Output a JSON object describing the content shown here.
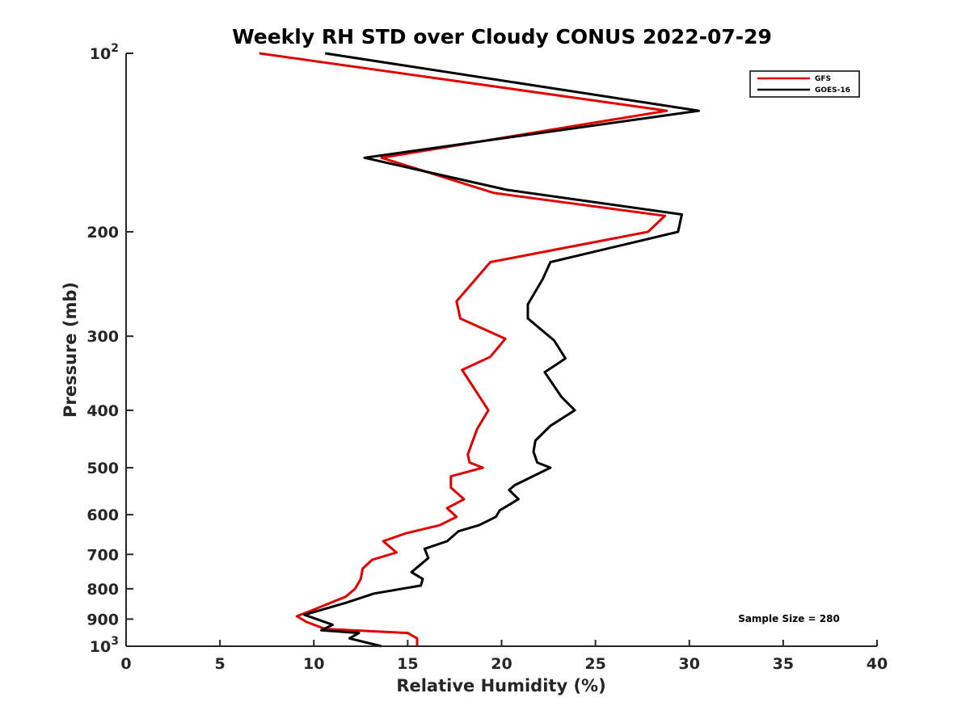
{
  "chart_data": {
    "type": "line",
    "title": "Weekly RH STD over Cloudy CONUS 2022-07-29",
    "xlabel": "Relative Humidity (%)",
    "ylabel": "Pressure (mb)",
    "xlim": [
      0,
      40
    ],
    "ylim": [
      100,
      1000
    ],
    "y_scale": "log",
    "y_reversed": true,
    "xticks": [
      0,
      5,
      10,
      15,
      20,
      25,
      30,
      35,
      40
    ],
    "xtick_labels": [
      "0",
      "5",
      "10",
      "15",
      "20",
      "25",
      "30",
      "35",
      "40"
    ],
    "yticks": [
      {
        "value": 100,
        "base": "10",
        "exp": "2"
      },
      {
        "value": 200,
        "base": "200",
        "exp": ""
      },
      {
        "value": 300,
        "base": "300",
        "exp": ""
      },
      {
        "value": 400,
        "base": "400",
        "exp": ""
      },
      {
        "value": 500,
        "base": "500",
        "exp": ""
      },
      {
        "value": 600,
        "base": "600",
        "exp": ""
      },
      {
        "value": 700,
        "base": "700",
        "exp": ""
      },
      {
        "value": 800,
        "base": "800",
        "exp": ""
      },
      {
        "value": 900,
        "base": "900",
        "exp": ""
      },
      {
        "value": 1000,
        "base": "10",
        "exp": "3"
      }
    ],
    "grid": false,
    "legend_position": "top-right",
    "annotation": "Sample Size = 280",
    "series": [
      {
        "name": "GFS",
        "color": "#e00000",
        "points": [
          [
            7.1,
            100
          ],
          [
            28.8,
            125
          ],
          [
            13.6,
            150
          ],
          [
            19.6,
            172
          ],
          [
            28.7,
            188
          ],
          [
            27.8,
            200
          ],
          [
            19.4,
            225
          ],
          [
            17.6,
            262
          ],
          [
            17.8,
            280
          ],
          [
            20.2,
            303
          ],
          [
            19.4,
            325
          ],
          [
            17.9,
            342
          ],
          [
            19.3,
            400
          ],
          [
            18.7,
            430
          ],
          [
            18.2,
            475
          ],
          [
            18.3,
            490
          ],
          [
            19.0,
            500
          ],
          [
            17.3,
            517
          ],
          [
            17.3,
            540
          ],
          [
            18.0,
            565
          ],
          [
            17.1,
            585
          ],
          [
            17.6,
            605
          ],
          [
            16.7,
            625
          ],
          [
            14.9,
            645
          ],
          [
            13.7,
            665
          ],
          [
            14.4,
            695
          ],
          [
            13.1,
            715
          ],
          [
            12.6,
            740
          ],
          [
            12.5,
            770
          ],
          [
            12.2,
            800
          ],
          [
            11.7,
            825
          ],
          [
            9.9,
            870
          ],
          [
            9.1,
            890
          ],
          [
            9.6,
            910
          ],
          [
            10.6,
            935
          ],
          [
            15.0,
            950
          ],
          [
            15.5,
            970
          ],
          [
            15.5,
            1000
          ]
        ]
      },
      {
        "name": "GOES-16",
        "color": "#000000",
        "points": [
          [
            10.6,
            100
          ],
          [
            30.5,
            125
          ],
          [
            12.7,
            150
          ],
          [
            20.3,
            170
          ],
          [
            29.6,
            187
          ],
          [
            29.4,
            200
          ],
          [
            22.6,
            225
          ],
          [
            22.2,
            240
          ],
          [
            21.4,
            265
          ],
          [
            21.4,
            280
          ],
          [
            22.8,
            305
          ],
          [
            23.4,
            327
          ],
          [
            22.3,
            345
          ],
          [
            23.2,
            380
          ],
          [
            23.9,
            400
          ],
          [
            22.6,
            425
          ],
          [
            21.8,
            450
          ],
          [
            21.7,
            470
          ],
          [
            21.9,
            490
          ],
          [
            22.6,
            500
          ],
          [
            20.7,
            535
          ],
          [
            20.4,
            545
          ],
          [
            20.9,
            565
          ],
          [
            19.9,
            590
          ],
          [
            19.7,
            605
          ],
          [
            18.8,
            625
          ],
          [
            17.7,
            640
          ],
          [
            17.1,
            665
          ],
          [
            15.9,
            685
          ],
          [
            16.1,
            710
          ],
          [
            15.2,
            750
          ],
          [
            15.8,
            770
          ],
          [
            15.7,
            790
          ],
          [
            13.2,
            815
          ],
          [
            11.7,
            845
          ],
          [
            9.5,
            885
          ],
          [
            11.0,
            920
          ],
          [
            10.4,
            940
          ],
          [
            12.4,
            950
          ],
          [
            11.9,
            970
          ],
          [
            13.6,
            1000
          ]
        ]
      }
    ]
  }
}
